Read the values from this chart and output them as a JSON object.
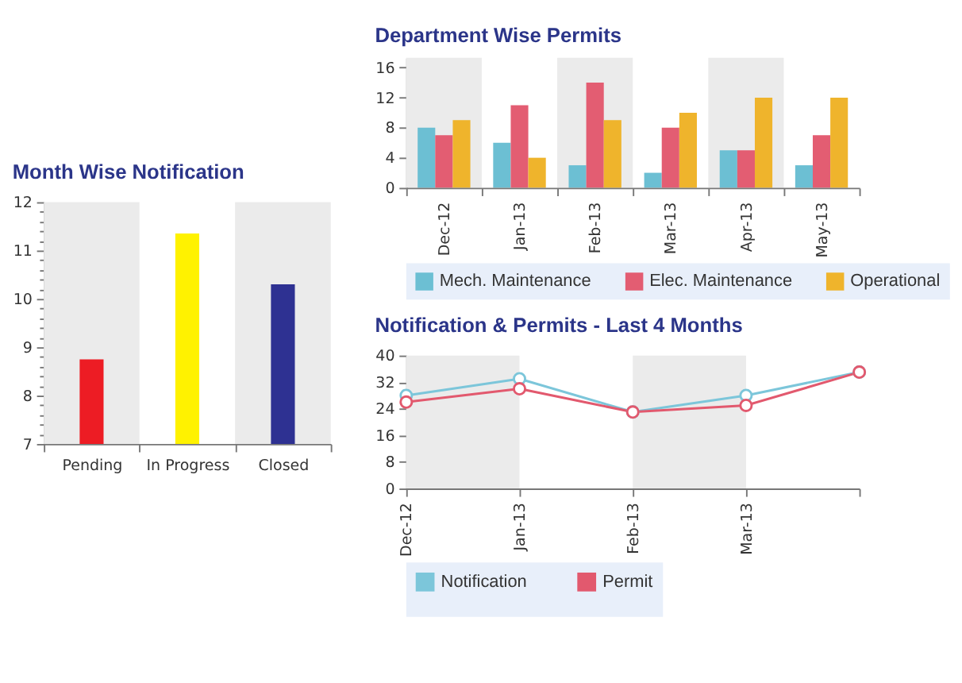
{
  "chart_data": [
    {
      "type": "bar",
      "title": "Month Wise Notification",
      "categories": [
        "Pending",
        "In Progress",
        "Closed"
      ],
      "values": [
        8.75,
        11.35,
        10.3
      ],
      "colors": [
        "#ed1c24",
        "#fff200",
        "#2e3192"
      ],
      "ylim": [
        7,
        12
      ],
      "yticks": [
        7,
        {
          "value": 7.2,
          "label": null
        },
        {
          "value": 7.4,
          "label": null
        },
        {
          "value": 7.6,
          "label": null
        },
        {
          "value": 7.8,
          "label": null
        },
        8,
        {
          "value": 8.2,
          "label": null
        },
        {
          "value": 8.4,
          "label": null
        },
        {
          "value": 8.6,
          "label": null
        },
        {
          "value": 8.8,
          "label": null
        },
        9,
        {
          "value": 9.2,
          "label": null
        },
        {
          "value": 9.4,
          "label": null
        },
        {
          "value": 9.6,
          "label": null
        },
        {
          "value": 9.8,
          "label": null
        },
        10,
        {
          "value": 10.2,
          "label": null
        },
        {
          "value": 10.4,
          "label": null
        },
        {
          "value": 10.6,
          "label": null
        },
        {
          "value": 10.8,
          "label": null
        },
        11,
        {
          "value": 11.2,
          "label": null
        },
        {
          "value": 11.4,
          "label": null
        },
        {
          "value": 11.6,
          "label": null
        },
        {
          "value": 11.8,
          "label": null
        },
        12
      ],
      "bands": [
        {
          "axis": "x",
          "from": "Pending",
          "to": "Pending",
          "color": "#ebebeb"
        },
        {
          "axis": "x",
          "from": "Closed",
          "to": "Closed",
          "color": "#ebebeb"
        }
      ]
    },
    {
      "type": "bar",
      "title": "Department Wise Permits",
      "categories": [
        "Dec-12",
        "Jan-13",
        "Feb-13",
        "Mar-13",
        "Apr-13",
        "May-13"
      ],
      "series": [
        {
          "name": "Mech. Maintenance",
          "color": "#6cbfd3",
          "values": [
            8,
            6,
            3,
            2,
            5,
            3
          ]
        },
        {
          "name": "Elec. Maintenance",
          "color": "#e35d72",
          "values": [
            7,
            11,
            14,
            8,
            5,
            7
          ]
        },
        {
          "name": "Operational",
          "color": "#efb42c",
          "values": [
            9,
            4,
            9,
            10,
            12,
            12
          ]
        }
      ],
      "ylim": [
        0,
        17.3
      ],
      "yticks": [
        0,
        4,
        8,
        12,
        16
      ],
      "legend": "bottom",
      "bands": [
        {
          "axis": "x",
          "from": "Dec-12",
          "to": "Dec-12",
          "color": "#ebebeb"
        },
        {
          "axis": "x",
          "from": "Feb-13",
          "to": "Feb-13",
          "color": "#ebebeb"
        },
        {
          "axis": "x",
          "from": "Apr-13",
          "to": "Apr-13",
          "color": "#ebebeb"
        }
      ]
    },
    {
      "type": "line",
      "title": "Notification & Permits - Last 4 Months",
      "categories": [
        "Dec-12",
        "Jan-13",
        "Feb-13",
        "Mar-13",
        null
      ],
      "series": [
        {
          "name": "Notification",
          "color": "#7cc6da",
          "values": [
            28,
            33,
            23,
            28,
            35
          ]
        },
        {
          "name": "Permit",
          "color": "#e2596e",
          "values": [
            26,
            30,
            23,
            25,
            35
          ]
        }
      ],
      "ylim": [
        0,
        40
      ],
      "yticks": [
        0,
        8,
        16,
        24,
        32,
        40
      ],
      "marker": "circle",
      "legend": "bottom",
      "bands": [
        {
          "axis": "x",
          "from": "Dec-12",
          "to": "Jan-13",
          "color": "#ebebeb"
        },
        {
          "axis": "x",
          "from": "Feb-13",
          "to": "Mar-13",
          "color": "#ebebeb"
        }
      ]
    }
  ]
}
